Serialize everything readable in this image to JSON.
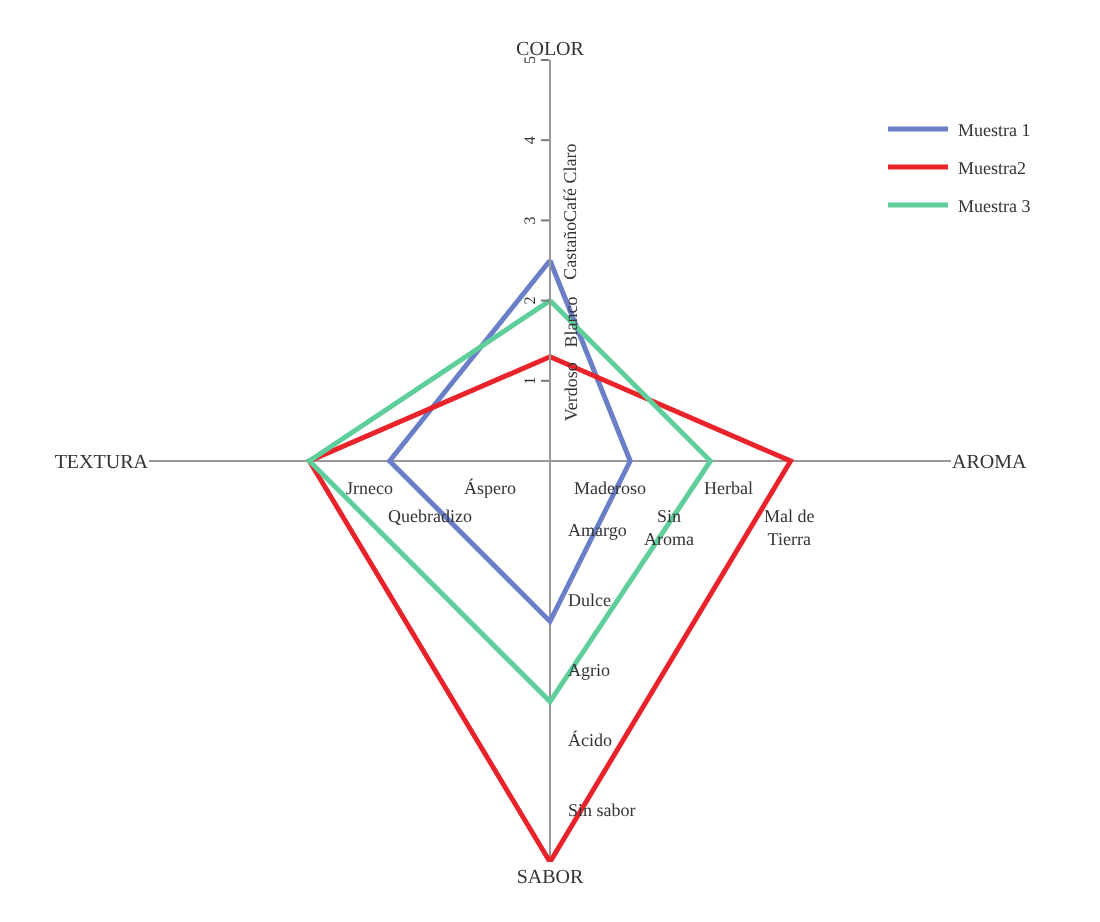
{
  "chart_data": {
    "type": "radar",
    "categories": [
      "COLOR",
      "AROMA",
      "SABOR",
      "TEXTURA"
    ],
    "ylim": [
      0,
      5
    ],
    "yticks": [
      1,
      2,
      3,
      4,
      5
    ],
    "series": [
      {
        "name": "Muestra 1",
        "color": "#6b7fc9",
        "values": [
          2.5,
          1,
          2,
          2
        ]
      },
      {
        "name": "Muestra2",
        "color": "#e8232a",
        "values": [
          1.3,
          3,
          5,
          3
        ]
      },
      {
        "name": "Muestra 3",
        "color": "#5ecf9a",
        "values": [
          2,
          2,
          3,
          3
        ]
      }
    ],
    "annotations": [
      {
        "text": "Verdoso",
        "x": "COLOR"
      },
      {
        "text": "Blanco",
        "x": "COLOR"
      },
      {
        "text": "Castaño",
        "x": "COLOR"
      },
      {
        "text": "Café Claro",
        "x": "COLOR"
      },
      {
        "text": "Maderoso",
        "x": "AROMA"
      },
      {
        "text": "Sin Aroma",
        "x": "AROMA"
      },
      {
        "text": "Herbal",
        "x": "AROMA"
      },
      {
        "text": "Mal de Tierra",
        "x": "AROMA"
      },
      {
        "text": "Amargo",
        "x": "SABOR"
      },
      {
        "text": "Dulce",
        "x": "SABOR"
      },
      {
        "text": "Agrio",
        "x": "SABOR"
      },
      {
        "text": "Ácido",
        "x": "SABOR"
      },
      {
        "text": "Sin sabor",
        "x": "SABOR"
      },
      {
        "text": "Áspero",
        "x": "TEXTURA"
      },
      {
        "text": "Quebradizo",
        "x": "TEXTURA"
      },
      {
        "text": "Jrneco",
        "x": "TEXTURA"
      }
    ],
    "legend": "top right",
    "grid": false,
    "marker": "none"
  }
}
